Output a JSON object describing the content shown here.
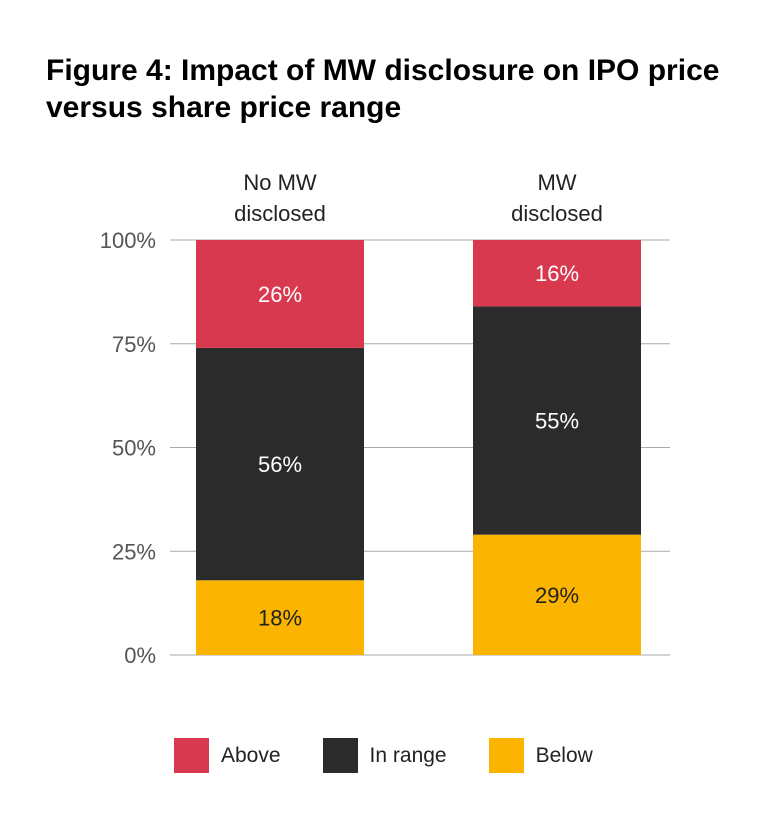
{
  "title": "Figure 4: Impact of MW disclosure on IPO price versus share price range",
  "colors": {
    "above": "#d9394f",
    "in_range": "#2b2b2b",
    "below": "#fbb400",
    "grid": "#aaaaaa"
  },
  "chart_data": {
    "type": "bar",
    "stacked": true,
    "title": "Figure 4: Impact of MW disclosure on IPO price versus share price range",
    "categories": [
      [
        "No MW",
        "disclosed"
      ],
      [
        "MW",
        "disclosed"
      ]
    ],
    "series": [
      {
        "name": "Below",
        "key": "below",
        "values": [
          18,
          29
        ],
        "labels": [
          "18%",
          "29%"
        ],
        "label_color": "#222222"
      },
      {
        "name": "In range",
        "key": "in_range",
        "values": [
          56,
          55
        ],
        "labels": [
          "56%",
          "55%"
        ],
        "label_color": "#ffffff"
      },
      {
        "name": "Above",
        "key": "above",
        "values": [
          26,
          16
        ],
        "labels": [
          "26%",
          "16%"
        ],
        "label_color": "#ffffff"
      }
    ],
    "yticks": [
      0,
      25,
      50,
      75,
      100
    ],
    "ytick_labels": [
      "0%",
      "25%",
      "50%",
      "75%",
      "100%"
    ],
    "ylim": [
      0,
      100
    ],
    "xlabel": "",
    "ylabel": "",
    "grid": true,
    "legend_position": "bottom"
  },
  "legend": [
    {
      "key": "above",
      "label": "Above"
    },
    {
      "key": "in_range",
      "label": "In range"
    },
    {
      "key": "below",
      "label": "Below"
    }
  ]
}
